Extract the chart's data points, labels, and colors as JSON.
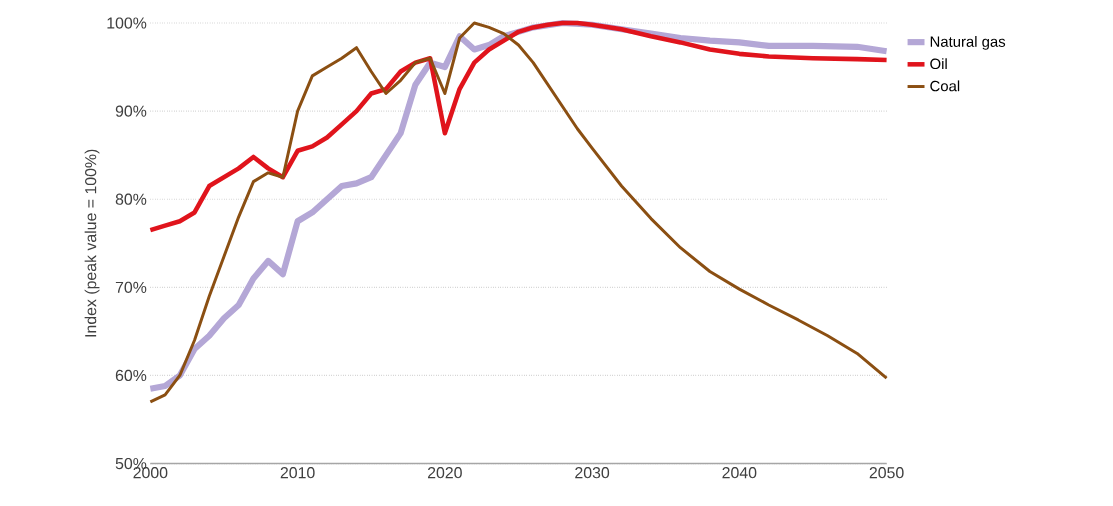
{
  "chart_data": {
    "type": "line",
    "ylabel": "Index (peak value = 100%)",
    "xlim": [
      2000,
      2050
    ],
    "xticks": [
      2000,
      2010,
      2020,
      2030,
      2040,
      2050
    ],
    "ylim": [
      50,
      100
    ],
    "yticks": [
      {
        "value": 50,
        "label": "50%"
      },
      {
        "value": 60,
        "label": "60%"
      },
      {
        "value": 70,
        "label": "70%"
      },
      {
        "value": 80,
        "label": "80%"
      },
      {
        "value": 90,
        "label": "90%"
      },
      {
        "value": 100,
        "label": "100%"
      }
    ],
    "grid": "y",
    "legend": "right",
    "marker": "none",
    "line_style": "solid",
    "series": [
      {
        "name": "Natural gas",
        "color": "#b4a7d6",
        "x": [
          2000,
          2001,
          2002,
          2003,
          2004,
          2005,
          2006,
          2007,
          2008,
          2009,
          2010,
          2011,
          2012,
          2013,
          2014,
          2015,
          2016,
          2017,
          2018,
          2019,
          2020,
          2021,
          2022,
          2023,
          2024,
          2025,
          2026,
          2028,
          2030,
          2032,
          2034,
          2036,
          2038,
          2040,
          2042,
          2045,
          2048,
          2050
        ],
        "values": [
          58.5,
          58.8,
          60,
          63,
          64.5,
          66.5,
          68,
          71,
          73,
          71.5,
          77.5,
          78.5,
          80,
          81.5,
          81.8,
          82.5,
          85,
          87.5,
          93,
          95.5,
          95,
          98.5,
          97,
          97.5,
          98.5,
          99,
          99.5,
          100,
          99.8,
          99.3,
          98.8,
          98.3,
          98,
          97.8,
          97.4,
          97.4,
          97.3,
          96.8
        ]
      },
      {
        "name": "Oil",
        "color": "#e0141c",
        "x": [
          2000,
          2001,
          2002,
          2003,
          2004,
          2005,
          2006,
          2007,
          2008,
          2009,
          2010,
          2011,
          2012,
          2013,
          2014,
          2015,
          2016,
          2017,
          2018,
          2019,
          2020,
          2021,
          2022,
          2023,
          2024,
          2025,
          2026,
          2027,
          2028,
          2029,
          2030,
          2032,
          2034,
          2036,
          2038,
          2040,
          2042,
          2045,
          2048,
          2050
        ],
        "values": [
          76.5,
          77,
          77.5,
          78.5,
          81.5,
          82.5,
          83.5,
          84.8,
          83.5,
          82.5,
          85.5,
          86,
          87,
          88.5,
          90,
          92,
          92.5,
          94.5,
          95.5,
          96,
          87.5,
          92.5,
          95.5,
          97,
          98,
          99,
          99.5,
          99.8,
          100,
          100,
          99.8,
          99.3,
          98.5,
          97.8,
          97,
          96.5,
          96.2,
          96,
          95.9,
          95.8
        ]
      },
      {
        "name": "Coal",
        "color": "#8b4f12",
        "x": [
          2000,
          2001,
          2002,
          2003,
          2004,
          2005,
          2006,
          2007,
          2008,
          2009,
          2010,
          2011,
          2012,
          2013,
          2014,
          2015,
          2016,
          2017,
          2018,
          2019,
          2020,
          2021,
          2022,
          2023,
          2024,
          2025,
          2026,
          2027,
          2028,
          2029,
          2030,
          2032,
          2034,
          2036,
          2038,
          2040,
          2042,
          2044,
          2046,
          2048,
          2050
        ],
        "values": [
          57,
          57.8,
          60,
          64,
          69,
          73.5,
          78,
          82,
          83,
          82.5,
          90,
          94,
          95,
          96,
          97.2,
          94.5,
          92,
          93.5,
          95.5,
          96,
          92,
          98.3,
          100,
          99.5,
          98.8,
          97.5,
          95.5,
          93,
          90.5,
          88,
          85.8,
          81.5,
          77.8,
          74.5,
          71.8,
          69.8,
          68,
          66.3,
          64.5,
          62.5,
          59.7
        ]
      }
    ]
  }
}
